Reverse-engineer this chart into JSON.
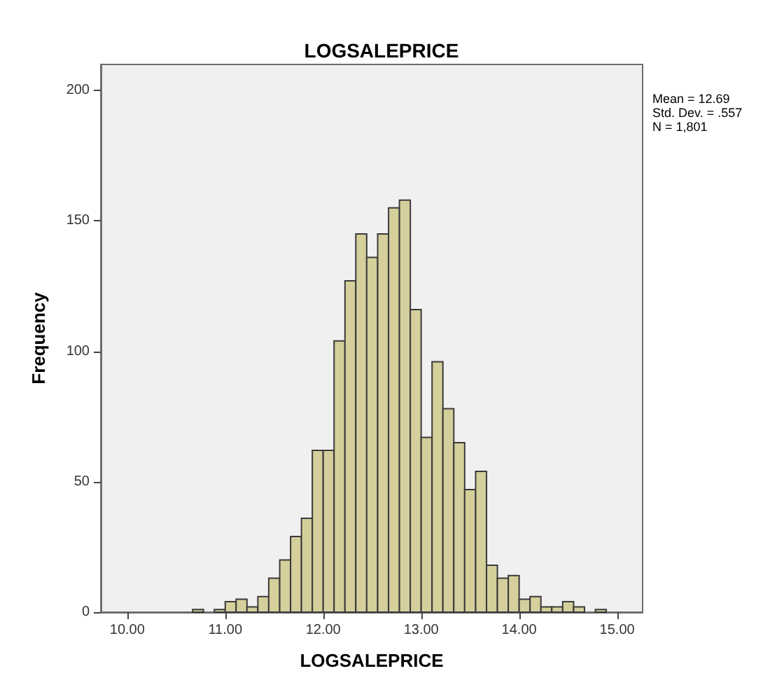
{
  "chart_data": {
    "type": "histogram",
    "title": "LOGSALEPRICE",
    "xlabel": "LOGSALEPRICE",
    "ylabel": "Frequency",
    "annotations": [
      "Mean = 12.69",
      "Std. Dev. = .557",
      "N = 1,801"
    ],
    "bins": [
      10.667,
      10.778,
      10.889,
      11.0,
      11.111,
      11.222,
      11.333,
      11.444,
      11.556,
      11.667,
      11.778,
      11.889,
      12.0,
      12.111,
      12.222,
      12.333,
      12.444,
      12.556,
      12.667,
      12.778,
      12.889,
      13.0,
      13.111,
      13.222,
      13.333,
      13.444,
      13.556,
      13.667,
      13.778,
      13.889,
      14.0,
      14.111,
      14.222,
      14.333,
      14.444,
      14.556,
      14.667,
      14.778,
      14.889
    ],
    "values": [
      1,
      0,
      1,
      4,
      5,
      2,
      6,
      13,
      20,
      29,
      36,
      62,
      62,
      104,
      127,
      145,
      136,
      145,
      155,
      158,
      116,
      67,
      96,
      78,
      65,
      47,
      54,
      18,
      13,
      14,
      5,
      6,
      2,
      2,
      4,
      2,
      0,
      1
    ],
    "color": "#d4cf9b",
    "xlim": [
      9.73,
      15.26
    ],
    "xticks": [
      {
        "value": 10,
        "label": "10.00"
      },
      {
        "value": 11,
        "label": "11.00"
      },
      {
        "value": 12,
        "label": "12.00"
      },
      {
        "value": 13,
        "label": "13.00"
      },
      {
        "value": 14,
        "label": "14.00"
      },
      {
        "value": 15,
        "label": "15.00"
      }
    ],
    "ylim": [
      0,
      210
    ],
    "yticks": [
      0,
      50,
      100,
      150,
      200
    ],
    "grid": false
  }
}
